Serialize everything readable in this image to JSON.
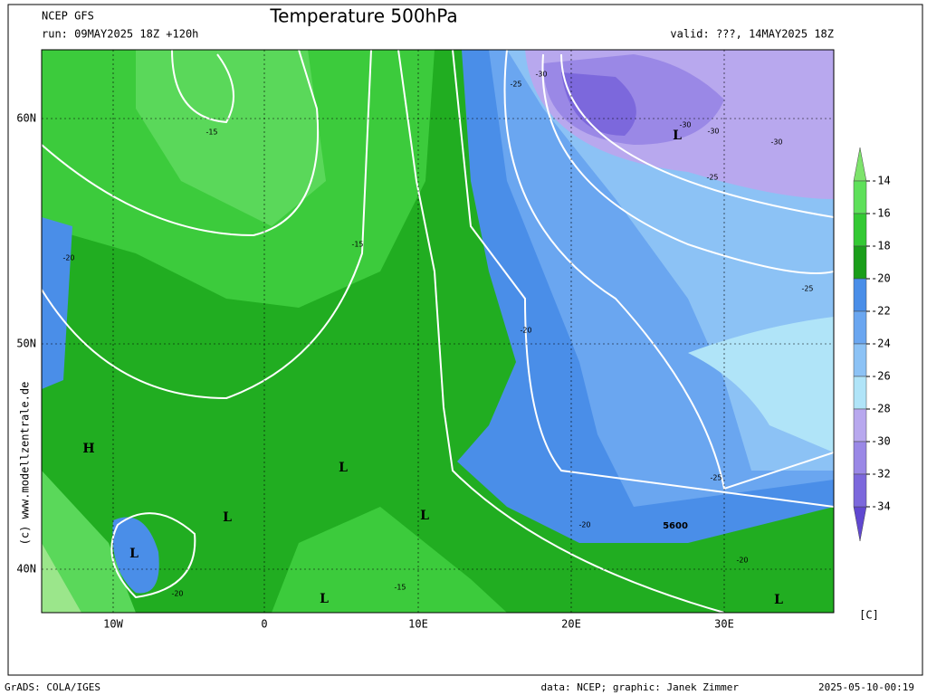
{
  "header": {
    "model": "NCEP GFS",
    "run": "run: 09MAY2025 18Z +120h",
    "title": "Temperature 500hPa",
    "valid": "valid: ???, 14MAY2025 18Z"
  },
  "map": {
    "credit": "(c) www.modellzentrale.de",
    "lat_labels": [
      "60N",
      "50N",
      "40N"
    ],
    "lon_labels": [
      "10W",
      "0",
      "10E",
      "20E",
      "30E"
    ],
    "contour_labels": [
      "-30",
      "-25",
      "-15",
      "-30",
      "-30",
      "-30",
      "-25",
      "-20",
      "-15",
      "-25",
      "-20",
      "-25",
      "-20",
      "5600",
      "-20",
      "-20",
      "-15"
    ],
    "pressure_centers": [
      "L",
      "H",
      "L",
      "L",
      "L",
      "L",
      "L",
      "L"
    ]
  },
  "colorbar": {
    "labels": [
      "-14",
      "-16",
      "-18",
      "-20",
      "-22",
      "-24",
      "-26",
      "-28",
      "-30",
      "-32",
      "-34"
    ],
    "unit": "[C]"
  },
  "footer": {
    "software": "GrADS: COLA/IGES",
    "source": "data: NCEP; graphic: Janek Zimmer",
    "timestamp": "2025-05-10-00:19"
  }
}
